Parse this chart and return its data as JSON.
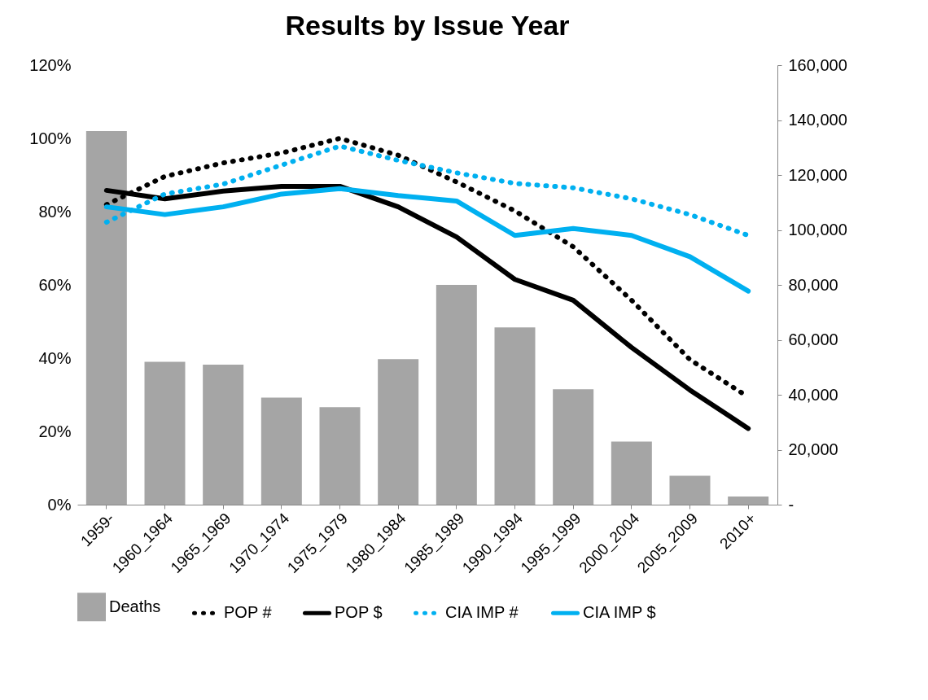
{
  "chart_data": {
    "type": "bar",
    "title": "Results by Issue Year",
    "categories": [
      "1959-",
      "1960_1964",
      "1965_1969",
      "1970_1974",
      "1975_1979",
      "1980_1984",
      "1985_1989",
      "1990_1994",
      "1995_1999",
      "2000_2004",
      "2005_2009",
      "2010+"
    ],
    "series": [
      {
        "name": "Deaths",
        "axis": "y2",
        "color": "#a5a5a5",
        "values": [
          136000,
          52000,
          51000,
          39000,
          35500,
          53000,
          80000,
          64500,
          42000,
          23000,
          10500,
          3000
        ]
      },
      {
        "name": "POP #",
        "type": "line",
        "line_style": "dotted",
        "color": "#000000",
        "values": [
          81.9,
          89.6,
          93.3,
          96,
          100,
          95.4,
          88.1,
          80.2,
          70.4,
          55.8,
          39.6,
          29.4
        ]
      },
      {
        "name": "POP $",
        "type": "line",
        "line_style": "solid",
        "color": "#000000",
        "values": [
          85.8,
          83.5,
          85.6,
          86.9,
          86.9,
          81.3,
          73.1,
          61.5,
          55.8,
          42.9,
          31.3,
          20.8
        ]
      },
      {
        "name": "CIA IMP #",
        "type": "line",
        "line_style": "dotted",
        "color": "#00b0f0",
        "values": [
          77.1,
          84.8,
          87.5,
          92.7,
          97.9,
          94,
          90.6,
          87.7,
          86.5,
          83.5,
          79.2,
          73.5
        ]
      },
      {
        "name": "CIA IMP $",
        "type": "line",
        "line_style": "solid",
        "color": "#00b0f0",
        "values": [
          81.3,
          79.2,
          81.3,
          84.8,
          86.3,
          84.4,
          82.9,
          73.5,
          75.4,
          73.5,
          67.7,
          58.3
        ]
      }
    ],
    "ylim": [
      0,
      120
    ],
    "yticks": [
      {
        "value": 0,
        "label": "0%"
      },
      {
        "value": 20,
        "label": "20%"
      },
      {
        "value": 40,
        "label": "40%"
      },
      {
        "value": 60,
        "label": "60%"
      },
      {
        "value": 80,
        "label": "80%"
      },
      {
        "value": 100,
        "label": "100%"
      },
      {
        "value": 120,
        "label": "120%"
      }
    ],
    "y2lim": [
      0,
      160000
    ],
    "y2ticks": [
      {
        "value": 0,
        "label": "-"
      },
      {
        "value": 20000,
        "label": "20,000"
      },
      {
        "value": 40000,
        "label": "40,000"
      },
      {
        "value": 60000,
        "label": "60,000"
      },
      {
        "value": 80000,
        "label": "80,000"
      },
      {
        "value": 100000,
        "label": "100,000"
      },
      {
        "value": 120000,
        "label": "120,000"
      },
      {
        "value": 140000,
        "label": "140,000"
      },
      {
        "value": 160000,
        "label": "160,000"
      }
    ],
    "grid": false,
    "legend": "bottom"
  }
}
